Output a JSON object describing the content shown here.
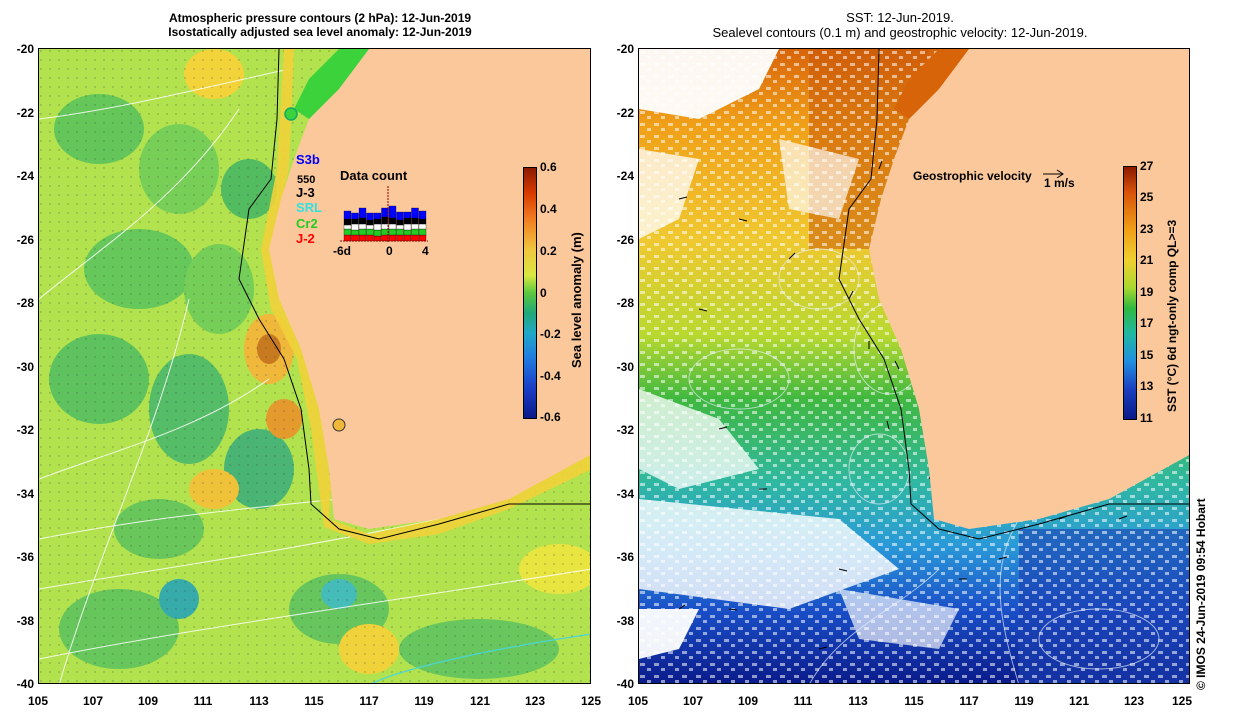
{
  "left_title": {
    "line1": "Atmospheric pressure contours (2 hPa): 12-Jun-2019",
    "line2": "Isostatically adjusted sea level anomaly: 12-Jun-2019"
  },
  "right_title": {
    "line1": "SST: 12-Jun-2019.",
    "line2": "Sealevel contours (0.1 m) and geostrophic velocity: 12-Jun-2019."
  },
  "lat_ticks": [
    "-20",
    "-22",
    "-24",
    "-26",
    "-28",
    "-30",
    "-32",
    "-34",
    "-36",
    "-38",
    "-40"
  ],
  "lon_ticks": [
    "105",
    "107",
    "109",
    "111",
    "113",
    "115",
    "117",
    "119",
    "121",
    "123",
    "125"
  ],
  "left_colorbar": {
    "label": "Sea level anomaly (m)",
    "ticks": [
      "0.6",
      "0.4",
      "0.2",
      "0",
      "-0.2",
      "-0.4",
      "-0.6"
    ],
    "range": [
      -0.6,
      0.6
    ]
  },
  "right_colorbar": {
    "label": "SST (°C) 6d ngt-only comp QL>=3",
    "ticks": [
      "27",
      "25",
      "23",
      "21",
      "19",
      "17",
      "15",
      "13",
      "11"
    ],
    "range": [
      11,
      27
    ]
  },
  "data_count": {
    "title": "Data count",
    "number": "550",
    "x_ticks": [
      "-6d",
      "0",
      "4"
    ],
    "satellites": [
      {
        "name": "S3b",
        "color": "#0000ff"
      },
      {
        "name": "J-3",
        "color": "#000000"
      },
      {
        "name": "SRL",
        "color": "#33e0e0"
      },
      {
        "name": "Cr2",
        "color": "#22cc22"
      },
      {
        "name": "J-2",
        "color": "#ff0000"
      }
    ]
  },
  "geostrophic": {
    "label": "Geostrophic velocity",
    "scale": "1 m/s"
  },
  "stamp": "© IMOS 24-Jun-2019 09:54 Hobart",
  "colors": {
    "land": "#fbc89b",
    "ocean_sla_base": "#b0e050",
    "sst_warm": "#d8520a",
    "sst_cool": "#1a3fb0"
  }
}
